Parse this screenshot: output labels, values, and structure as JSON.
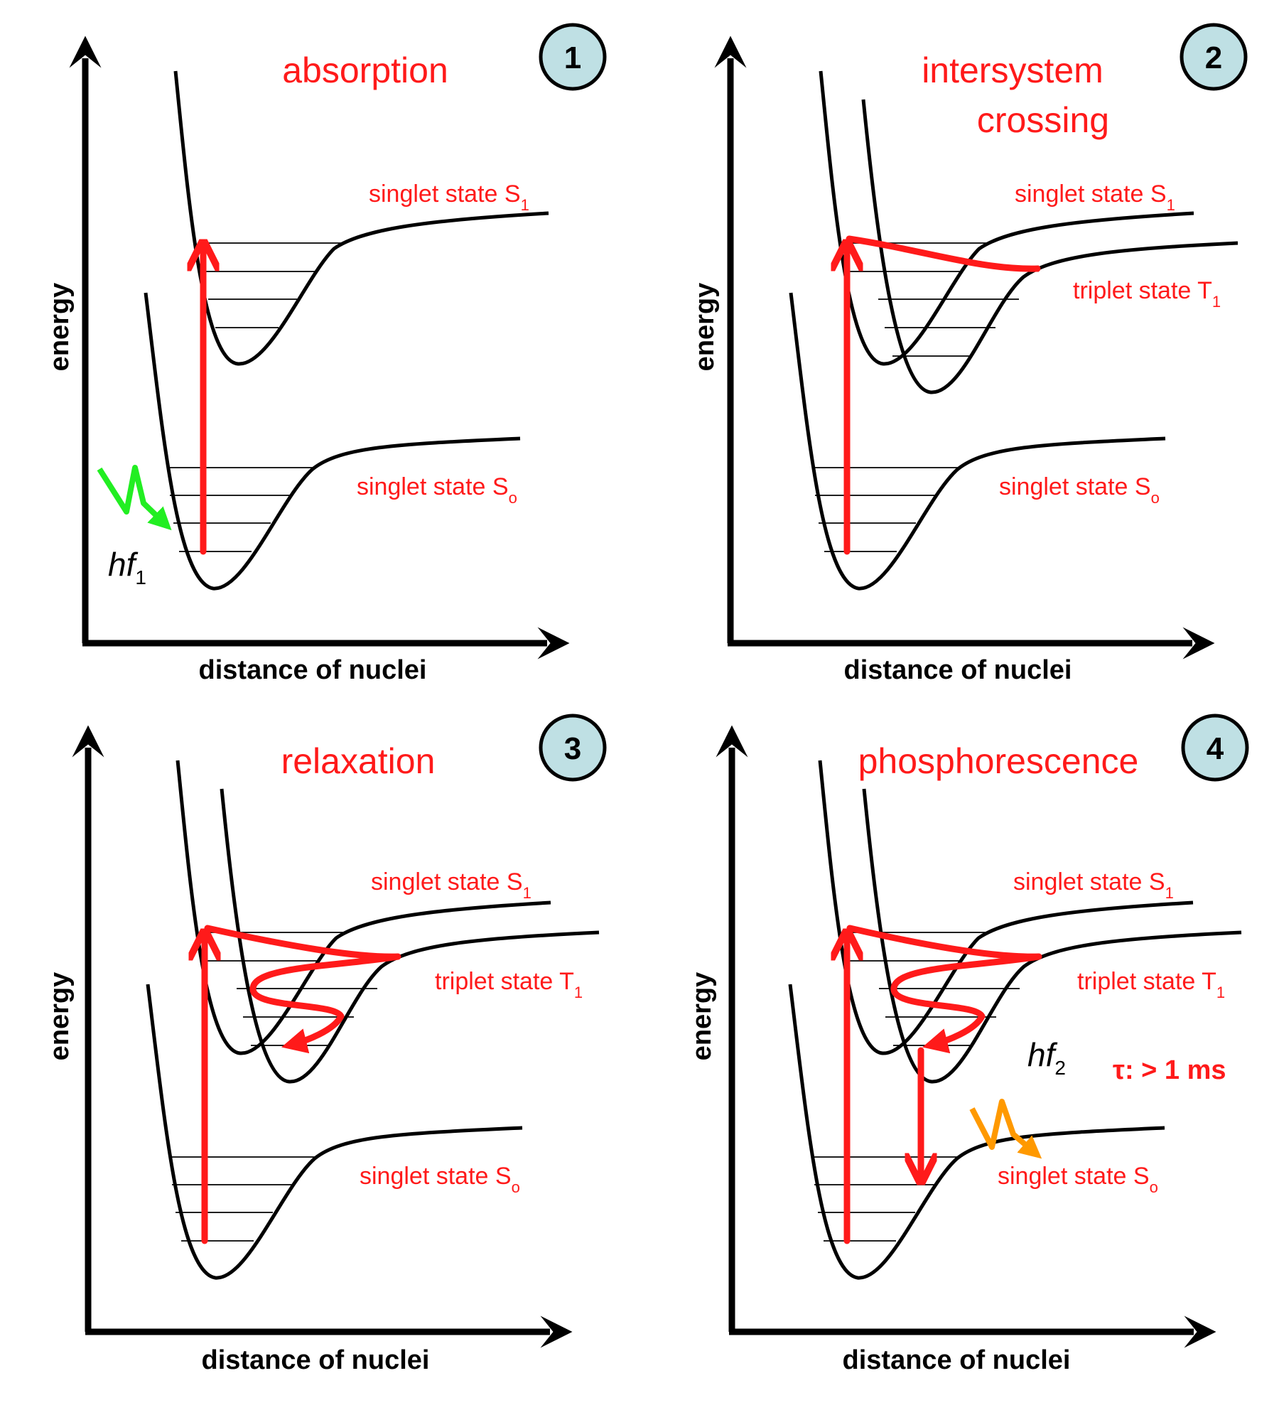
{
  "panels": [
    {
      "badge": "1",
      "title_lines": [
        "absorption"
      ],
      "ylabel": "energy",
      "xlabel": "distance of nuclei",
      "states": [
        {
          "text": "singlet state S",
          "sub": "1"
        },
        {
          "text": "singlet state S",
          "sub": "o"
        }
      ],
      "photon": {
        "text": "hf",
        "sub": "1",
        "color": "#22ee22"
      }
    },
    {
      "badge": "2",
      "title_lines": [
        "intersystem",
        "crossing"
      ],
      "ylabel": "energy",
      "xlabel": "distance of nuclei",
      "states": [
        {
          "text": "singlet state S",
          "sub": "1"
        },
        {
          "text": "triplet state T",
          "sub": "1"
        },
        {
          "text": "singlet state S",
          "sub": "o"
        }
      ]
    },
    {
      "badge": "3",
      "title_lines": [
        "relaxation"
      ],
      "ylabel": "energy",
      "xlabel": "distance of nuclei",
      "states": [
        {
          "text": "singlet state S",
          "sub": "1"
        },
        {
          "text": "triplet state T",
          "sub": "1"
        },
        {
          "text": "singlet state S",
          "sub": "o"
        }
      ]
    },
    {
      "badge": "4",
      "title_lines": [
        "phosphorescence"
      ],
      "ylabel": "energy",
      "xlabel": "distance of nuclei",
      "states": [
        {
          "text": "singlet state S",
          "sub": "1"
        },
        {
          "text": "triplet state T",
          "sub": "1"
        },
        {
          "text": "singlet state S",
          "sub": "o"
        }
      ],
      "photon": {
        "text": "hf",
        "sub": "2",
        "color": "#ff9900"
      },
      "lifetime": "τ: > 1 ms"
    }
  ],
  "colors": {
    "annotation": "#ff1a1a",
    "badge_fill": "#bfe0e4",
    "curve": "#000000"
  }
}
